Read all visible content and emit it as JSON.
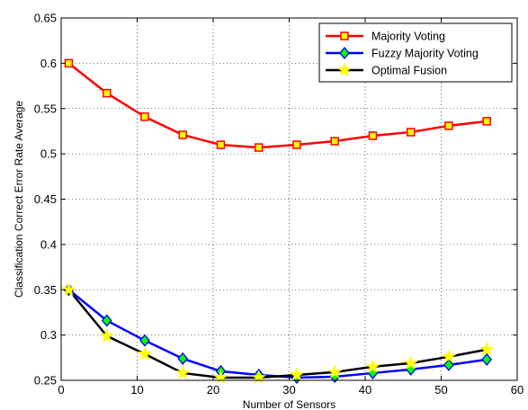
{
  "chart_data": {
    "type": "line",
    "title": "",
    "xlabel": "Number of Sensors",
    "ylabel": "Classification Correct Error Rate Average",
    "xlim": [
      0,
      60
    ],
    "ylim": [
      0.25,
      0.65
    ],
    "x_ticks": [
      "0",
      "10",
      "20",
      "30",
      "40",
      "50",
      "60"
    ],
    "y_ticks": [
      "0.25",
      "0.3",
      "0.35",
      "0.4",
      "0.45",
      "0.5",
      "0.55",
      "0.6",
      "0.65"
    ],
    "grid": true,
    "legend_position": "top-right",
    "x": [
      1,
      6,
      11,
      16,
      21,
      26,
      31,
      36,
      41,
      46,
      51,
      56
    ],
    "series": [
      {
        "name": "Majority Voting",
        "color": "#ff0000",
        "marker": "square",
        "marker_color": "#ffff00",
        "values": [
          0.6,
          0.567,
          0.541,
          0.521,
          0.51,
          0.507,
          0.51,
          0.514,
          0.52,
          0.524,
          0.531,
          0.536
        ]
      },
      {
        "name": "Fuzzy Majority Voting",
        "color": "#0000ff",
        "marker": "diamond",
        "marker_color": "#00ff00",
        "values": [
          0.35,
          0.316,
          0.294,
          0.274,
          0.26,
          0.256,
          0.253,
          0.254,
          0.258,
          0.262,
          0.267,
          0.273
        ]
      },
      {
        "name": "Optimal Fusion",
        "color": "#000000",
        "marker": "star",
        "marker_color": "#ffff00",
        "values": [
          0.35,
          0.299,
          0.279,
          0.258,
          0.253,
          0.253,
          0.256,
          0.259,
          0.265,
          0.269,
          0.276,
          0.284
        ]
      }
    ]
  }
}
